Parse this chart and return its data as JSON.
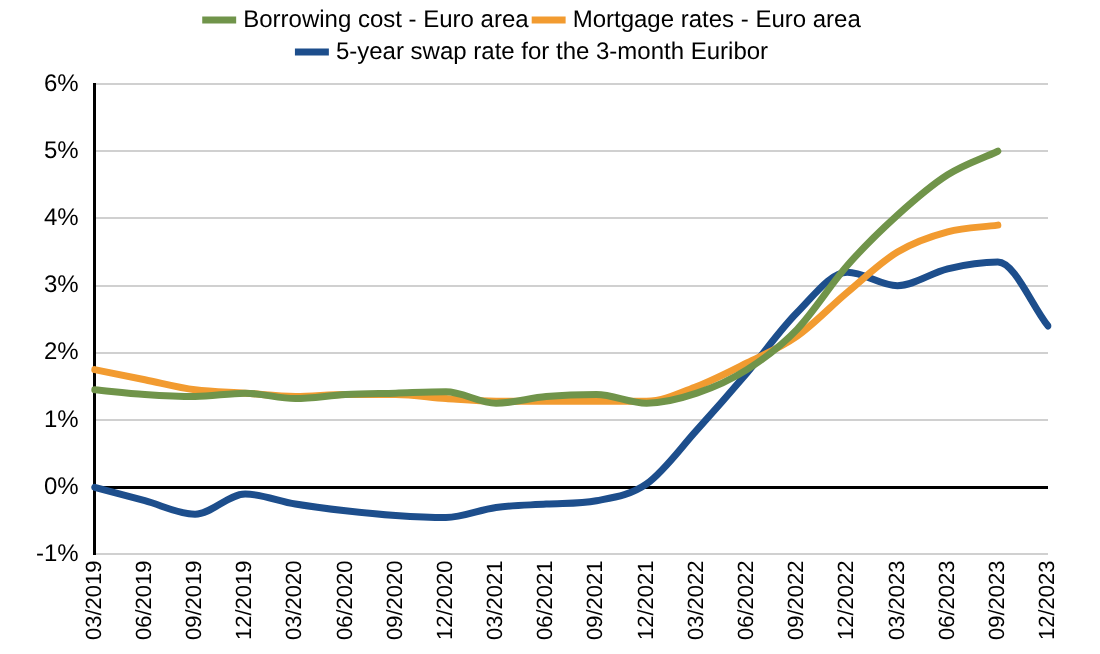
{
  "chart_data": {
    "type": "line",
    "categories": [
      "03/2019",
      "06/2019",
      "09/2019",
      "12/2019",
      "03/2020",
      "06/2020",
      "09/2020",
      "12/2020",
      "03/2021",
      "06/2021",
      "09/2021",
      "12/2021",
      "03/2022",
      "06/2022",
      "09/2022",
      "12/2022",
      "03/2023",
      "06/2023",
      "09/2023",
      "12/2023"
    ],
    "series": [
      {
        "name": "Borrowing cost - Euro area",
        "color": "#70944a",
        "values": [
          1.45,
          1.38,
          1.35,
          1.4,
          1.32,
          1.38,
          1.4,
          1.42,
          1.25,
          1.35,
          1.38,
          1.25,
          1.4,
          1.75,
          2.35,
          3.3,
          4.05,
          4.65,
          5.0,
          null
        ]
      },
      {
        "name": "Mortgage rates - Euro area",
        "color": "#f29b30",
        "values": [
          1.75,
          1.6,
          1.45,
          1.4,
          1.35,
          1.38,
          1.38,
          1.32,
          1.28,
          1.28,
          1.28,
          1.28,
          1.5,
          1.85,
          2.25,
          2.9,
          3.5,
          3.8,
          3.9,
          null
        ]
      },
      {
        "name": "5-year swap rate for the 3-month Euribor",
        "color": "#1d4e8c",
        "values": [
          0,
          -0.2,
          -0.4,
          -0.1,
          -0.25,
          -0.35,
          -0.42,
          -0.45,
          -0.3,
          -0.25,
          -0.2,
          0.05,
          0.85,
          1.7,
          2.6,
          3.2,
          3.0,
          3.25,
          3.35,
          2.4
        ]
      }
    ],
    "ylim": [
      -1,
      6
    ],
    "yticks": [
      {
        "value": -1,
        "label": "-1%"
      },
      {
        "value": 0,
        "label": "0%"
      },
      {
        "value": 1,
        "label": "1%"
      },
      {
        "value": 2,
        "label": "2%"
      },
      {
        "value": 3,
        "label": "3%"
      },
      {
        "value": 4,
        "label": "4%"
      },
      {
        "value": 5,
        "label": "5%"
      },
      {
        "value": 6,
        "label": "6%"
      }
    ],
    "grid": "y",
    "legend": "top",
    "marker": "none",
    "line_style": "solid"
  }
}
